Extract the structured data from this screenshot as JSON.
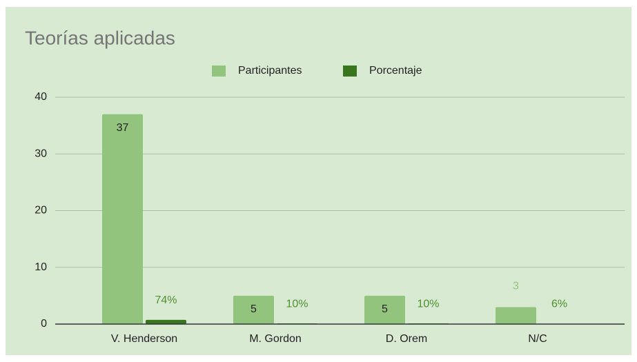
{
  "chart_data": {
    "type": "bar",
    "title": "Teorías aplicadas",
    "categories": [
      "V. Henderson",
      "M. Gordon",
      "D. Orem",
      "N/C"
    ],
    "series": [
      {
        "name": "Participantes",
        "color": "#93c47d",
        "values": [
          37,
          5,
          5,
          3
        ]
      },
      {
        "name": "Porcentaje",
        "color": "#38761d",
        "values": [
          0.74,
          0.1,
          0.1,
          0.06
        ],
        "value_labels": [
          "74%",
          "10%",
          "10%",
          "6%"
        ]
      }
    ],
    "ylim": [
      0,
      40
    ],
    "yticks": [
      0,
      10,
      20,
      30,
      40
    ],
    "grid": true,
    "legend": "top"
  }
}
